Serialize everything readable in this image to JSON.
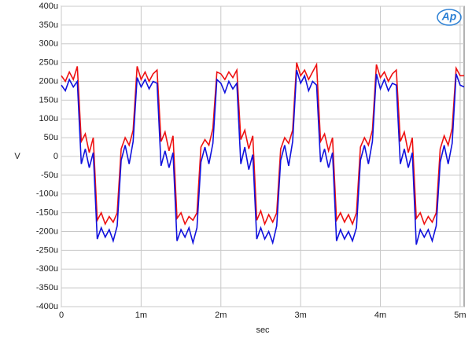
{
  "chart_data": {
    "type": "line",
    "logo": "Ap",
    "x_label": "sec",
    "y_label": "V",
    "xlim": [
      0,
      0.00505
    ],
    "ylim": [
      -0.0004,
      0.0004
    ],
    "xticks": [
      0,
      {
        "value": 0.001,
        "label": "1m"
      },
      {
        "value": 0.002,
        "label": "2m"
      },
      {
        "value": 0.003,
        "label": "3m"
      },
      {
        "value": 0.004,
        "label": "4m"
      },
      {
        "value": 0.005,
        "label": "5m"
      }
    ],
    "yticks": [
      {
        "value": -0.0004,
        "label": "-400u"
      },
      {
        "value": -0.00035,
        "label": "-350u"
      },
      {
        "value": -0.0003,
        "label": "-300u"
      },
      {
        "value": -0.00025,
        "label": "-250u"
      },
      {
        "value": -0.0002,
        "label": "-200u"
      },
      {
        "value": -0.00015,
        "label": "-150u"
      },
      {
        "value": -0.0001,
        "label": "-100u"
      },
      {
        "value": -5e-05,
        "label": "-50u"
      },
      0,
      {
        "value": 5e-05,
        "label": "50u"
      },
      {
        "value": 0.0001,
        "label": "100u"
      },
      {
        "value": 0.00015,
        "label": "150u"
      },
      {
        "value": 0.0002,
        "label": "200u"
      },
      {
        "value": 0.00025,
        "label": "250u"
      },
      {
        "value": 0.0003,
        "label": "300u"
      },
      {
        "value": 0.00035,
        "label": "350u"
      },
      {
        "value": 0.0004,
        "label": "400u"
      }
    ],
    "grid": true,
    "x": [
      0.0,
      5e-05,
      0.0001,
      0.00015,
      0.0002,
      0.00025,
      0.0003,
      0.00035,
      0.0004,
      0.00045,
      0.0005,
      0.00055,
      0.0006,
      0.00065,
      0.0007,
      0.00075,
      0.0008,
      0.00085,
      0.0009,
      0.00095,
      0.001,
      0.00105,
      0.0011,
      0.00115,
      0.0012,
      0.00125,
      0.0013,
      0.00135,
      0.0014,
      0.00145,
      0.0015,
      0.00155,
      0.0016,
      0.00165,
      0.0017,
      0.00175,
      0.0018,
      0.00185,
      0.0019,
      0.00195,
      0.002,
      0.00205,
      0.0021,
      0.00215,
      0.0022,
      0.00225,
      0.0023,
      0.00235,
      0.0024,
      0.00245,
      0.0025,
      0.00255,
      0.0026,
      0.00265,
      0.0027,
      0.00275,
      0.0028,
      0.00285,
      0.0029,
      0.00295,
      0.003,
      0.00305,
      0.0031,
      0.00315,
      0.0032,
      0.00325,
      0.0033,
      0.00335,
      0.0034,
      0.00345,
      0.0035,
      0.00355,
      0.0036,
      0.00365,
      0.0037,
      0.00375,
      0.0038,
      0.00385,
      0.0039,
      0.00395,
      0.004,
      0.00405,
      0.0041,
      0.00415,
      0.0042,
      0.00425,
      0.0043,
      0.00435,
      0.0044,
      0.00445,
      0.0045,
      0.00455,
      0.0046,
      0.00465,
      0.0047,
      0.00475,
      0.0048,
      0.00485,
      0.0049,
      0.00495,
      0.005,
      0.00505
    ],
    "series": [
      {
        "color": "#ee1111",
        "values": [
          0.000215,
          0.0002,
          0.000225,
          0.000205,
          0.00024,
          4e-05,
          6e-05,
          1e-05,
          5e-05,
          -0.00017,
          -0.00015,
          -0.00018,
          -0.00016,
          -0.000175,
          -0.00015,
          2e-05,
          5e-05,
          3e-05,
          7e-05,
          0.00024,
          0.000205,
          0.000225,
          0.0002,
          0.00022,
          0.00023,
          4e-05,
          6.5e-05,
          1.5e-05,
          5.5e-05,
          -0.000165,
          -0.00015,
          -0.00018,
          -0.00016,
          -0.00017,
          -0.00015,
          2.5e-05,
          4.5e-05,
          3e-05,
          7.5e-05,
          0.000225,
          0.00022,
          0.000205,
          0.000225,
          0.00021,
          0.00023,
          4.5e-05,
          7e-05,
          2e-05,
          5.5e-05,
          -0.00017,
          -0.000145,
          -0.00018,
          -0.000155,
          -0.000175,
          -0.00015,
          2e-05,
          5e-05,
          3.5e-05,
          7e-05,
          0.00025,
          0.000215,
          0.00023,
          0.000205,
          0.000225,
          0.000245,
          4e-05,
          6e-05,
          1.5e-05,
          5e-05,
          -0.00017,
          -0.00015,
          -0.000175,
          -0.000155,
          -0.00018,
          -0.00015,
          2.5e-05,
          5e-05,
          3e-05,
          7e-05,
          0.000245,
          0.00021,
          0.000225,
          0.0002,
          0.00022,
          0.00023,
          4e-05,
          6.5e-05,
          1e-05,
          5e-05,
          -0.000165,
          -0.00015,
          -0.00018,
          -0.00016,
          -0.000175,
          -0.00015,
          2e-05,
          5.5e-05,
          3e-05,
          7.5e-05,
          0.000235,
          0.000215,
          0.000215
        ]
      },
      {
        "color": "#1111dd",
        "values": [
          0.00019,
          0.000175,
          0.000205,
          0.000185,
          0.0002,
          -2e-05,
          2e-05,
          -3e-05,
          1e-05,
          -0.00022,
          -0.00019,
          -0.000215,
          -0.000195,
          -0.000225,
          -0.000185,
          -1e-05,
          3e-05,
          -2e-05,
          4e-05,
          0.00021,
          0.000185,
          0.000205,
          0.00018,
          0.0002,
          0.000195,
          -2.5e-05,
          1.5e-05,
          -3e-05,
          1e-05,
          -0.000225,
          -0.000195,
          -0.000215,
          -0.00019,
          -0.00023,
          -0.00019,
          -1.5e-05,
          2.5e-05,
          -2e-05,
          3.5e-05,
          0.000205,
          0.000195,
          0.00017,
          0.0002,
          0.00018,
          0.000195,
          -2e-05,
          2.5e-05,
          -3.5e-05,
          5e-06,
          -0.00022,
          -0.00019,
          -0.00022,
          -0.0002,
          -0.00023,
          -0.000185,
          -1e-05,
          3e-05,
          -2.5e-05,
          4e-05,
          0.00023,
          0.000195,
          0.000215,
          0.000175,
          0.0002,
          0.00019,
          -1.5e-05,
          2e-05,
          -3e-05,
          1e-05,
          -0.000225,
          -0.000195,
          -0.00022,
          -0.0002,
          -0.000225,
          -0.00019,
          -1e-05,
          3e-05,
          -2e-05,
          4e-05,
          0.00022,
          0.00018,
          0.000205,
          0.000175,
          0.000195,
          0.00019,
          -2e-05,
          2e-05,
          -3e-05,
          1e-05,
          -0.000235,
          -0.000195,
          -0.000215,
          -0.000195,
          -0.000225,
          -0.000185,
          -1.5e-05,
          3e-05,
          -2e-05,
          3.5e-05,
          0.00022,
          0.00019,
          0.000185
        ]
      }
    ]
  }
}
